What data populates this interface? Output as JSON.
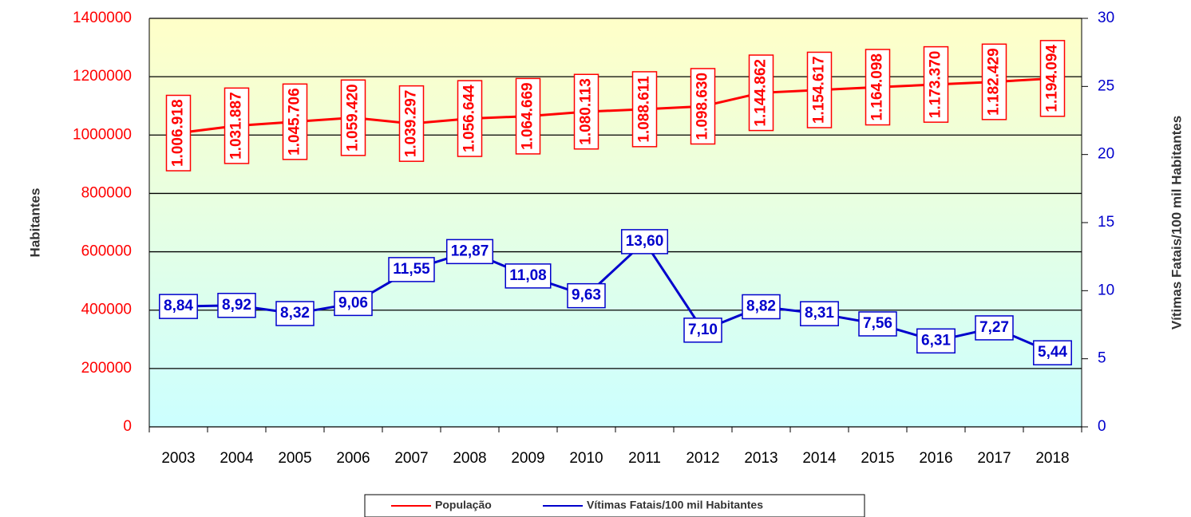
{
  "chart_data": {
    "type": "line",
    "categories": [
      "2003",
      "2004",
      "2005",
      "2006",
      "2007",
      "2008",
      "2009",
      "2010",
      "2011",
      "2012",
      "2013",
      "2014",
      "2015",
      "2016",
      "2017",
      "2018"
    ],
    "y_label": "Habitantes",
    "y2_label": "Vítimas Fatais/100 mil Habitantes",
    "ylim": [
      0,
      1400000
    ],
    "yticks": [
      0,
      200000,
      400000,
      600000,
      800000,
      1000000,
      1200000,
      1400000
    ],
    "y2lim": [
      0,
      30
    ],
    "y2ticks": [
      0,
      5,
      10,
      15,
      20,
      25,
      30
    ],
    "grid": true,
    "legend": "bottom",
    "series": [
      {
        "name": "População",
        "color": "#ff0000",
        "axis": "y",
        "values": [
          1006918,
          1031887,
          1045706,
          1059420,
          1039297,
          1056644,
          1064669,
          1080113,
          1088611,
          1098630,
          1144862,
          1154617,
          1164098,
          1173370,
          1182429,
          1194094
        ],
        "value_labels": [
          "1.006.918",
          "1.031.887",
          "1.045.706",
          "1.059.420",
          "1.039.297",
          "1.056.644",
          "1.064.669",
          "1.080.113",
          "1.088.611",
          "1.098.630",
          "1.144.862",
          "1.154.617",
          "1.164.098",
          "1.173.370",
          "1.182.429",
          "1.194.094"
        ]
      },
      {
        "name": "Vítimas Fatais/100 mil Habitantes",
        "color": "#0000cc",
        "axis": "y2",
        "values": [
          8.84,
          8.92,
          8.32,
          9.06,
          11.55,
          12.87,
          11.08,
          9.63,
          13.6,
          7.1,
          8.82,
          8.31,
          7.56,
          6.31,
          7.27,
          5.44
        ],
        "value_labels": [
          "8,84",
          "8,92",
          "8,32",
          "9,06",
          "11,55",
          "12,87",
          "11,08",
          "9,63",
          "13,60",
          "7,10",
          "8,82",
          "8,31",
          "7,56",
          "6,31",
          "7,27",
          "5,44"
        ]
      }
    ]
  }
}
